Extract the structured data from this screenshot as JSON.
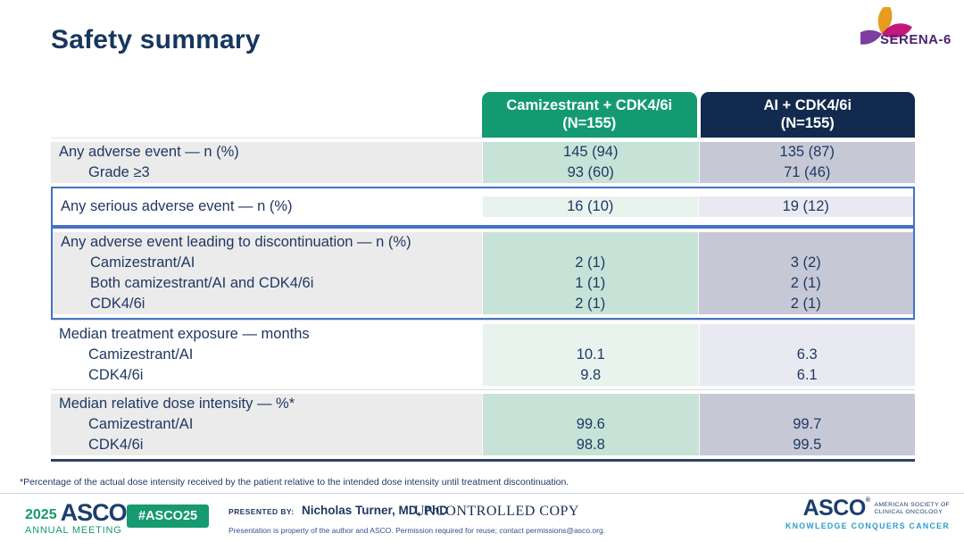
{
  "slide": {
    "title": "Safety summary",
    "footnote": "*Percentage of the actual dose intensity received by the patient relative to the intended dose intensity until treatment discontinuation."
  },
  "logos": {
    "serena": {
      "text": "SERENA-6"
    }
  },
  "colors": {
    "header_green": "#149a70",
    "header_navy": "#112a4e",
    "highlight_border_blue": "#4472c4",
    "text_navy": "#1f3864",
    "asco_green": "#169a6f",
    "tagline_blue": "#2d9ccd"
  },
  "table": {
    "columns": [
      {
        "label": "Camizestrant + CDK4/6i",
        "sublabel": "(N=155)",
        "style": "green"
      },
      {
        "label": "AI + CDK4/6i",
        "sublabel": "(N=155)",
        "style": "navy"
      }
    ],
    "rows": [
      {
        "shade": "gray",
        "highlight": false,
        "labels": [
          {
            "text": "Any adverse event — n (%)",
            "indent": false
          },
          {
            "text": "Grade ≥3",
            "indent": true
          }
        ],
        "cam": [
          "145 (94)",
          "93 (60)"
        ],
        "ai": [
          "135 (87)",
          "71 (46)"
        ]
      },
      {
        "shade": "white",
        "highlight": true,
        "labels": [
          {
            "text": "Any serious adverse event — n (%)",
            "indent": false
          }
        ],
        "cam": [
          "16 (10)"
        ],
        "ai": [
          "19 (12)"
        ]
      },
      {
        "shade": "gray",
        "highlight": true,
        "labels": [
          {
            "text": "Any adverse event leading to discontinuation — n (%)",
            "indent": false
          },
          {
            "text": "Camizestrant/AI",
            "indent": true
          },
          {
            "text": "Both camizestrant/AI and CDK4/6i",
            "indent": true
          },
          {
            "text": "CDK4/6i",
            "indent": true
          }
        ],
        "cam": [
          "",
          "2 (1)",
          "1 (1)",
          "2 (1)"
        ],
        "ai": [
          "",
          "3 (2)",
          "2 (1)",
          "2 (1)"
        ]
      },
      {
        "shade": "white",
        "highlight": false,
        "labels": [
          {
            "text": "Median treatment exposure — months",
            "indent": false
          },
          {
            "text": "Camizestrant/AI",
            "indent": true
          },
          {
            "text": "CDK4/6i",
            "indent": true
          }
        ],
        "cam": [
          "",
          "10.1",
          "9.8"
        ],
        "ai": [
          "",
          "6.3",
          "6.1"
        ]
      },
      {
        "shade": "gray",
        "highlight": false,
        "labels": [
          {
            "text": "Median relative dose intensity — %*",
            "indent": false
          },
          {
            "text": "Camizestrant/AI",
            "indent": true
          },
          {
            "text": "CDK4/6i",
            "indent": true
          }
        ],
        "cam": [
          "",
          "99.6",
          "98.8"
        ],
        "ai": [
          "",
          "99.7",
          "99.5"
        ]
      }
    ]
  },
  "footer": {
    "year": "2025",
    "asco_wordmark": "ASCO",
    "annual_meeting": "ANNUAL MEETING",
    "hashtag": "#ASCO25",
    "presented_by_label": "PRESENTED BY:",
    "presenter": "Nicholas Turner, MD, PhD",
    "uncontrolled": "UNCONTROLLED COPY",
    "permission_note": "Presentation is property of the author and ASCO. Permission required for reuse; contact permissions@asco.org.",
    "asco_right_wordmark": "ASCO",
    "society_line1": "AMERICAN SOCIETY OF",
    "society_line2": "CLINICAL ONCOLOGY",
    "tagline": "KNOWLEDGE CONQUERS CANCER"
  }
}
